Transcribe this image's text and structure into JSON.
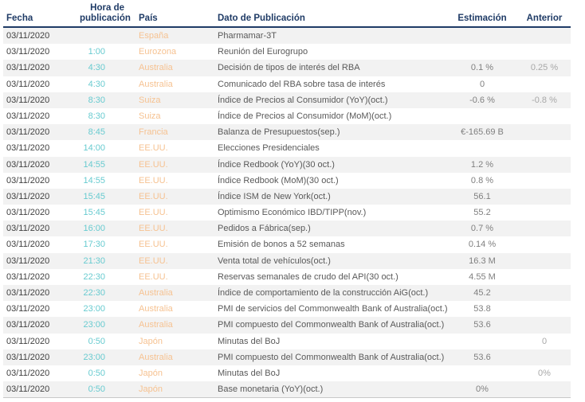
{
  "colors": {
    "c_header": "#1F3B66",
    "c_line": "#1F3B66",
    "c_date_text": "#404040",
    "c_time_text": "#68CBD0",
    "c_country_text": "#F6C291",
    "c_dato_text": "#595959",
    "c_estimacion_text": "#7F7F7F",
    "c_anterior_text": "#A8A8A8",
    "c_row_stripe": "#F2F2F2",
    "c_bottom_border": "#C8C8C8"
  },
  "chart_data": {
    "type": "table",
    "title": "",
    "columns": [
      "Fecha",
      "Hora de publicación",
      "País",
      "Dato de Publicación",
      "Estimación",
      "Anterior"
    ],
    "rows": [
      [
        "03/11/2020",
        "",
        "España",
        "Pharmamar-3T",
        "",
        ""
      ],
      [
        "03/11/2020",
        "1:00",
        "Eurozona",
        "Reunión del Eurogrupo",
        "",
        ""
      ],
      [
        "03/11/2020",
        "4:30",
        "Australia",
        "Decisión de tipos de interés del RBA",
        "0.1 %",
        "0.25 %"
      ],
      [
        "03/11/2020",
        "4:30",
        "Australia",
        "Comunicado del RBA sobre tasa de interés",
        "0",
        ""
      ],
      [
        "03/11/2020",
        "8:30",
        "Suiza",
        "Índice de Precios al Consumidor (YoY)(oct.)",
        "-0.6 %",
        "-0.8 %"
      ],
      [
        "03/11/2020",
        "8:30",
        "Suiza",
        "Índice de Precios al Consumidor (MoM)(oct.)",
        "",
        ""
      ],
      [
        "03/11/2020",
        "8:45",
        "Francia",
        "Balanza de Presupuestos(sep.)",
        "€-165.69 B",
        ""
      ],
      [
        "03/11/2020",
        "14:00",
        "EE.UU.",
        "Elecciones Presidenciales",
        "",
        ""
      ],
      [
        "03/11/2020",
        "14:55",
        "EE.UU.",
        "Índice Redbook (YoY)(30 oct.)",
        "1.2 %",
        ""
      ],
      [
        "03/11/2020",
        "14:55",
        "EE.UU.",
        "Índice Redbook (MoM)(30 oct.)",
        "0.8 %",
        ""
      ],
      [
        "03/11/2020",
        "15:45",
        "EE.UU.",
        "Índice ISM de New York(oct.)",
        "56.1",
        ""
      ],
      [
        "03/11/2020",
        "15:45",
        "EE.UU.",
        "Optimismo Económico IBD/TIPP(nov.)",
        "55.2",
        ""
      ],
      [
        "03/11/2020",
        "16:00",
        "EE.UU.",
        "Pedidos a Fábrica(sep.)",
        "0.7 %",
        ""
      ],
      [
        "03/11/2020",
        "17:30",
        "EE.UU.",
        "Emisión de bonos a 52 semanas",
        "0.14 %",
        ""
      ],
      [
        "03/11/2020",
        "21:30",
        "EE.UU.",
        "Venta total de vehículos(oct.)",
        "16.3 M",
        ""
      ],
      [
        "03/11/2020",
        "22:30",
        "EE.UU.",
        "Reservas semanales de crudo del API(30 oct.)",
        "4.55 M",
        ""
      ],
      [
        "03/11/2020",
        "22:30",
        "Australia",
        "Índice de comportamiento de la construcción AiG(oct.)",
        "45.2",
        ""
      ],
      [
        "03/11/2020",
        "23:00",
        "Australia",
        "PMI de servicios del Commonwealth Bank of Australia(oct.)",
        "53.8",
        ""
      ],
      [
        "03/11/2020",
        "23:00",
        "Australia",
        "PMI compuesto del Commonwealth Bank of Australia(oct.)",
        "53.6",
        ""
      ],
      [
        "03/11/2020",
        "0:50",
        "Japón",
        "Minutas del BoJ",
        "",
        "0"
      ],
      [
        "03/11/2020",
        "23:00",
        "Australia",
        "PMI compuesto del Commonwealth Bank of Australia(oct.)",
        "53.6",
        ""
      ],
      [
        "03/11/2020",
        "0:50",
        "Japón",
        "Minutas del BoJ",
        "",
        "0%"
      ],
      [
        "03/11/2020",
        "0:50",
        "Japón",
        "Base monetaria (YoY)(oct.)",
        "0%",
        ""
      ]
    ]
  },
  "table": {
    "header": {
      "fecha": "Fecha",
      "hora_line1": "Hora de",
      "hora_line2": "publicación",
      "pais": "País",
      "dato": "Dato de Publicación",
      "estimacion": "Estimación",
      "anterior": "Anterior"
    },
    "rows": [
      {
        "fecha": "03/11/2020",
        "hora": "",
        "pais": "España",
        "dato": "Pharmamar-3T",
        "estimacion": "",
        "anterior": ""
      },
      {
        "fecha": "03/11/2020",
        "hora": "1:00",
        "pais": "Eurozona",
        "dato": "Reunión del Eurogrupo",
        "estimacion": "",
        "anterior": ""
      },
      {
        "fecha": "03/11/2020",
        "hora": "4:30",
        "pais": "Australia",
        "dato": "Decisión de tipos de interés del RBA",
        "estimacion": "0.1 %",
        "anterior": "0.25 %"
      },
      {
        "fecha": "03/11/2020",
        "hora": "4:30",
        "pais": "Australia",
        "dato": "Comunicado del RBA sobre tasa de interés",
        "estimacion": "0",
        "anterior": ""
      },
      {
        "fecha": "03/11/2020",
        "hora": "8:30",
        "pais": "Suiza",
        "dato": "Índice de Precios al Consumidor (YoY)(oct.)",
        "estimacion": "-0.6 %",
        "anterior": "-0.8 %"
      },
      {
        "fecha": "03/11/2020",
        "hora": "8:30",
        "pais": "Suiza",
        "dato": "Índice de Precios al Consumidor (MoM)(oct.)",
        "estimacion": "",
        "anterior": ""
      },
      {
        "fecha": "03/11/2020",
        "hora": "8:45",
        "pais": "Francia",
        "dato": "Balanza de Presupuestos(sep.)",
        "estimacion": "€-165.69 B",
        "anterior": ""
      },
      {
        "fecha": "03/11/2020",
        "hora": "14:00",
        "pais": "EE.UU.",
        "dato": "Elecciones Presidenciales",
        "estimacion": "",
        "anterior": ""
      },
      {
        "fecha": "03/11/2020",
        "hora": "14:55",
        "pais": "EE.UU.",
        "dato": "Índice Redbook (YoY)(30 oct.)",
        "estimacion": "1.2 %",
        "anterior": ""
      },
      {
        "fecha": "03/11/2020",
        "hora": "14:55",
        "pais": "EE.UU.",
        "dato": "Índice Redbook (MoM)(30 oct.)",
        "estimacion": "0.8 %",
        "anterior": ""
      },
      {
        "fecha": "03/11/2020",
        "hora": "15:45",
        "pais": "EE.UU.",
        "dato": "Índice ISM de New York(oct.)",
        "estimacion": "56.1",
        "anterior": ""
      },
      {
        "fecha": "03/11/2020",
        "hora": "15:45",
        "pais": "EE.UU.",
        "dato": "Optimismo Económico IBD/TIPP(nov.)",
        "estimacion": "55.2",
        "anterior": ""
      },
      {
        "fecha": "03/11/2020",
        "hora": "16:00",
        "pais": "EE.UU.",
        "dato": "Pedidos a Fábrica(sep.)",
        "estimacion": "0.7 %",
        "anterior": ""
      },
      {
        "fecha": "03/11/2020",
        "hora": "17:30",
        "pais": "EE.UU.",
        "dato": "Emisión de bonos a 52 semanas",
        "estimacion": "0.14 %",
        "anterior": ""
      },
      {
        "fecha": "03/11/2020",
        "hora": "21:30",
        "pais": "EE.UU.",
        "dato": "Venta total de vehículos(oct.)",
        "estimacion": "16.3 M",
        "anterior": ""
      },
      {
        "fecha": "03/11/2020",
        "hora": "22:30",
        "pais": "EE.UU.",
        "dato": "Reservas semanales de crudo del API(30 oct.)",
        "estimacion": "4.55 M",
        "anterior": ""
      },
      {
        "fecha": "03/11/2020",
        "hora": "22:30",
        "pais": "Australia",
        "dato": "Índice de comportamiento de la construcción AiG(oct.)",
        "estimacion": "45.2",
        "anterior": ""
      },
      {
        "fecha": "03/11/2020",
        "hora": "23:00",
        "pais": "Australia",
        "dato": "PMI de servicios del Commonwealth Bank of Australia(oct.)",
        "estimacion": "53.8",
        "anterior": ""
      },
      {
        "fecha": "03/11/2020",
        "hora": "23:00",
        "pais": "Australia",
        "dato": "PMI compuesto del Commonwealth Bank of Australia(oct.)",
        "estimacion": "53.6",
        "anterior": ""
      },
      {
        "fecha": "03/11/2020",
        "hora": "0:50",
        "pais": "Japón",
        "dato": "Minutas del BoJ",
        "estimacion": "",
        "anterior": "0"
      },
      {
        "fecha": "03/11/2020",
        "hora": "23:00",
        "pais": "Australia",
        "dato": "PMI compuesto del Commonwealth Bank of Australia(oct.)",
        "estimacion": "53.6",
        "anterior": ""
      },
      {
        "fecha": "03/11/2020",
        "hora": "0:50",
        "pais": "Japón",
        "dato": "Minutas del BoJ",
        "estimacion": "",
        "anterior": "0%"
      },
      {
        "fecha": "03/11/2020",
        "hora": "0:50",
        "pais": "Japón",
        "dato": "Base monetaria (YoY)(oct.)",
        "estimacion": "0%",
        "anterior": ""
      }
    ]
  }
}
